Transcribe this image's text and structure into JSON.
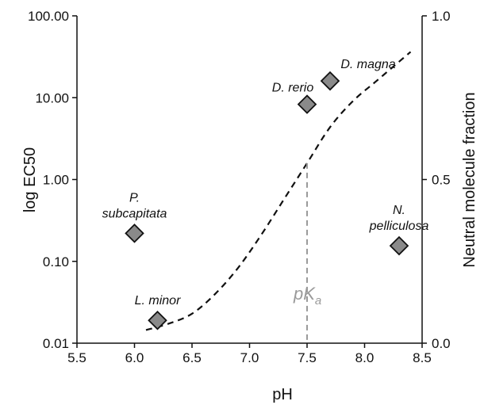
{
  "chart_data": {
    "type": "scatter",
    "xlabel": "pH",
    "ylabel": "log EC50",
    "y2label": "Neutral molecule fraction",
    "xlim": [
      5.5,
      8.5
    ],
    "ylim": [
      0.01,
      100
    ],
    "yscale": "log",
    "y2lim": [
      0.0,
      1.0
    ],
    "grid": false,
    "x_ticks": [
      "5.5",
      "6.0",
      "6.5",
      "7.0",
      "7.5",
      "8.0",
      "8.5"
    ],
    "y_ticks": [
      "0.01",
      "0.10",
      "1.00",
      "10.00",
      "100.00"
    ],
    "y2_ticks": [
      "0.0",
      "0.5",
      "1.0"
    ],
    "points": [
      {
        "label": [
          "P.",
          "subcapitata"
        ],
        "x": 6.0,
        "y": 0.22
      },
      {
        "label": [
          "L. minor"
        ],
        "x": 6.2,
        "y": 0.019
      },
      {
        "label": [
          "D. rerio"
        ],
        "x": 7.5,
        "y": 8.3
      },
      {
        "label": [
          "D. magna"
        ],
        "x": 7.7,
        "y": 16
      },
      {
        "label": [
          "N.",
          "pelliculosa"
        ],
        "x": 8.3,
        "y": 0.155
      }
    ],
    "marker_color": "#8a8a8a",
    "curve": {
      "axis": "y2",
      "style": "dashed",
      "x": [
        6.1,
        6.3,
        6.5,
        6.7,
        6.9,
        7.1,
        7.3,
        7.5,
        7.7,
        7.9,
        8.1,
        8.3,
        8.4
      ],
      "y": [
        0.04,
        0.06,
        0.09,
        0.15,
        0.23,
        0.33,
        0.44,
        0.55,
        0.66,
        0.74,
        0.8,
        0.86,
        0.89
      ]
    },
    "pka": {
      "x": 7.5,
      "y2_top": 0.55,
      "text": "pK",
      "subscript": "a",
      "color": "#9a9a9a"
    }
  }
}
